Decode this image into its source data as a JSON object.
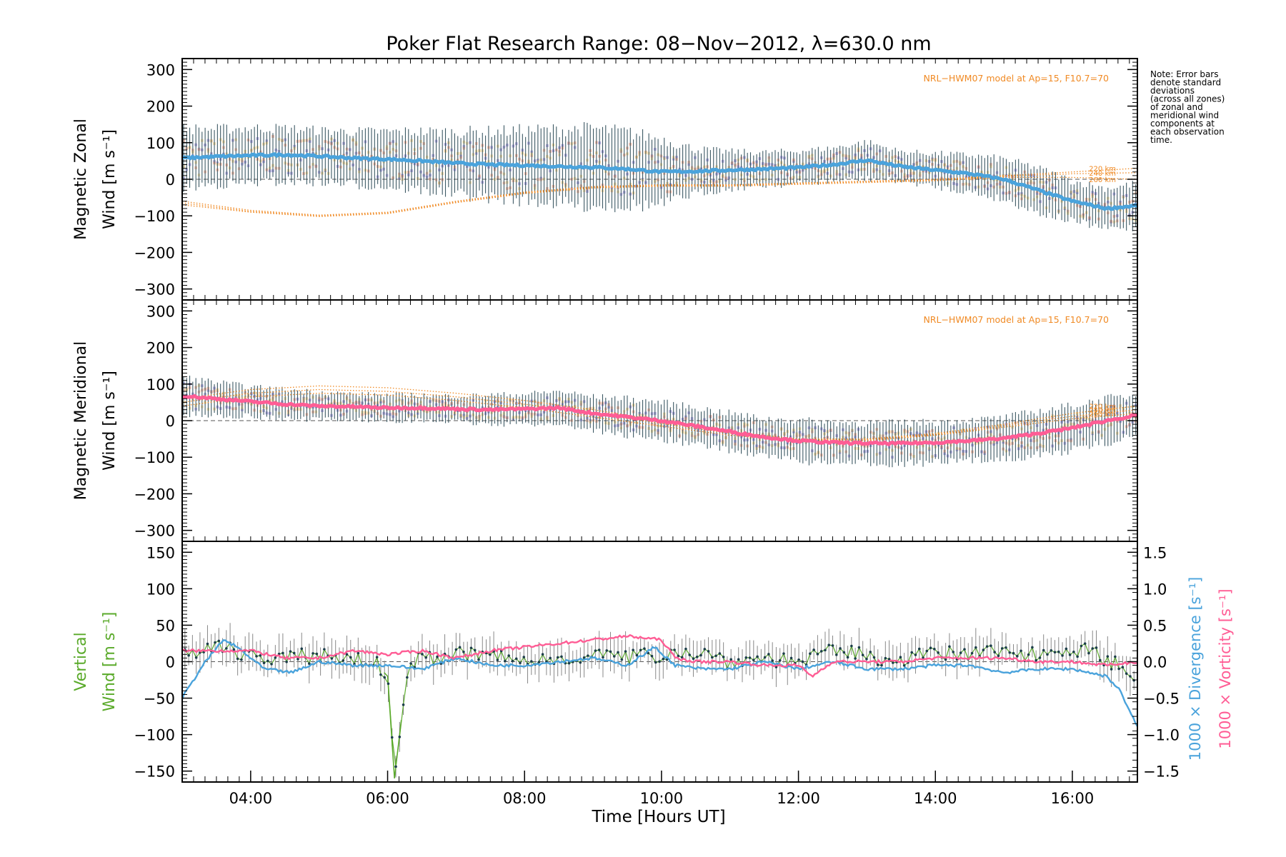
{
  "title": "Poker Flat Research Range: 08−Nov−2012, λ=630.0 nm",
  "note_lines": [
    "Note: Error bars",
    "denote standard",
    "deviations",
    "(across all zones)",
    "of zonal and",
    "meridional wind",
    "components at",
    "each observation",
    "time."
  ],
  "colors": {
    "zonal_mean": "#4aa3dc",
    "meridional_mean": "#ff5d95",
    "vertical": "#5aaa2a",
    "divergence": "#4aa3dc",
    "vorticity": "#ff5d95",
    "model": "#f08a24",
    "zone_purple": "#a8a0dc",
    "zone_peach": "#f8b8a0",
    "zone_yellow": "#f8dca0",
    "errorbar": "#1c3d4a",
    "vert_errorbar": "#888888"
  },
  "chart_data": [
    {
      "type": "line",
      "panel": "zonal",
      "ylabel_line1": "Magnetic Zonal",
      "ylabel_line2": "Wind [m s⁻¹]",
      "model_label": "NRL−HWM07 model at Ap=15, F10.7=70",
      "model_alt_labels": [
        "220 km",
        "240 km",
        "260 km"
      ],
      "xlim": [
        3.0,
        16.95
      ],
      "ylim": [
        -330,
        330
      ],
      "yticks": [
        -300,
        -200,
        -100,
        0,
        100,
        200,
        300
      ],
      "ytick_labels": [
        "−300",
        "−200",
        "−100",
        "0",
        "100",
        "200",
        "300"
      ],
      "series": [
        {
          "role": "mean",
          "x": [
            3.0,
            3.5,
            4.0,
            4.5,
            5.0,
            5.5,
            6.0,
            6.5,
            7.0,
            7.5,
            8.0,
            8.5,
            9.0,
            9.5,
            10.0,
            10.5,
            11.0,
            11.5,
            12.0,
            12.5,
            13.0,
            13.5,
            14.0,
            14.5,
            15.0,
            15.5,
            16.0,
            16.5,
            16.95
          ],
          "y": [
            58,
            62,
            65,
            67,
            63,
            58,
            55,
            50,
            44,
            40,
            38,
            35,
            33,
            28,
            20,
            22,
            25,
            28,
            32,
            40,
            52,
            35,
            25,
            15,
            0,
            -30,
            -60,
            -80,
            -72
          ],
          "sd": [
            80,
            75,
            75,
            72,
            70,
            72,
            75,
            80,
            85,
            90,
            95,
            100,
            105,
            100,
            90,
            60,
            50,
            45,
            45,
            45,
            50,
            40,
            45,
            50,
            55,
            60,
            55,
            55,
            60
          ]
        },
        {
          "role": "model",
          "name": "220 km",
          "x": [
            3.0,
            4.0,
            5.0,
            6.0,
            7.0,
            8.0,
            9.0,
            10.0,
            11.0,
            12.0,
            13.0,
            14.0,
            15.0,
            16.0,
            16.95
          ],
          "y": [
            -60,
            -85,
            -98,
            -90,
            -60,
            -35,
            -20,
            -15,
            -15,
            -10,
            -5,
            0,
            10,
            20,
            30
          ]
        },
        {
          "role": "model",
          "name": "240 km",
          "x": [
            3.0,
            4.0,
            5.0,
            6.0,
            7.0,
            8.0,
            9.0,
            10.0,
            11.0,
            12.0,
            13.0,
            14.0,
            15.0,
            16.0,
            16.95
          ],
          "y": [
            -65,
            -88,
            -100,
            -92,
            -62,
            -37,
            -22,
            -17,
            -17,
            -12,
            -7,
            -2,
            8,
            15,
            18
          ]
        },
        {
          "role": "model",
          "name": "260 km",
          "x": [
            3.0,
            4.0,
            5.0,
            6.0,
            7.0,
            8.0,
            9.0,
            10.0,
            11.0,
            12.0,
            13.0,
            14.0,
            15.0,
            16.0,
            16.95
          ],
          "y": [
            -70,
            -90,
            -102,
            -94,
            -64,
            -39,
            -24,
            -19,
            -19,
            -14,
            -9,
            -4,
            5,
            5,
            0
          ]
        }
      ]
    },
    {
      "type": "line",
      "panel": "meridional",
      "ylabel_line1": "Magnetic Meridional",
      "ylabel_line2": "Wind [m s⁻¹]",
      "model_label": "NRL−HWM07 model at Ap=15, F10.7=70",
      "model_alt_labels": [
        "220 km",
        "240 km",
        "260 km"
      ],
      "xlim": [
        3.0,
        16.95
      ],
      "ylim": [
        -330,
        330
      ],
      "yticks": [
        -300,
        -200,
        -100,
        0,
        100,
        200,
        300
      ],
      "ytick_labels": [
        "−300",
        "−200",
        "−100",
        "0",
        "100",
        "200",
        "300"
      ],
      "series": [
        {
          "role": "mean",
          "x": [
            3.0,
            3.5,
            4.0,
            4.5,
            5.0,
            5.5,
            6.0,
            6.5,
            7.0,
            7.5,
            8.0,
            8.5,
            9.0,
            9.5,
            10.0,
            10.5,
            11.0,
            11.5,
            12.0,
            12.5,
            13.0,
            13.5,
            14.0,
            14.5,
            15.0,
            15.5,
            16.0,
            16.5,
            16.95
          ],
          "y": [
            68,
            60,
            52,
            45,
            40,
            38,
            35,
            35,
            32,
            30,
            32,
            35,
            20,
            10,
            0,
            -15,
            -30,
            -45,
            -55,
            -60,
            -62,
            -62,
            -60,
            -55,
            -48,
            -35,
            -20,
            0,
            15
          ],
          "sd": [
            50,
            45,
            40,
            40,
            38,
            35,
            35,
            35,
            35,
            40,
            40,
            45,
            45,
            50,
            50,
            50,
            50,
            50,
            55,
            55,
            55,
            55,
            55,
            55,
            55,
            60,
            60,
            60,
            55
          ]
        },
        {
          "role": "model",
          "name": "220 km",
          "x": [
            3.0,
            4.0,
            5.0,
            6.0,
            7.0,
            8.0,
            9.0,
            10.0,
            11.0,
            12.0,
            13.0,
            14.0,
            15.0,
            16.0,
            16.95
          ],
          "y": [
            60,
            85,
            95,
            90,
            75,
            55,
            30,
            0,
            -30,
            -50,
            -50,
            -35,
            -10,
            20,
            40
          ]
        },
        {
          "role": "model",
          "name": "240 km",
          "x": [
            3.0,
            4.0,
            5.0,
            6.0,
            7.0,
            8.0,
            9.0,
            10.0,
            11.0,
            12.0,
            13.0,
            14.0,
            15.0,
            16.0,
            16.95
          ],
          "y": [
            50,
            75,
            85,
            80,
            65,
            45,
            20,
            -8,
            -35,
            -52,
            -52,
            -38,
            -14,
            12,
            30
          ]
        },
        {
          "role": "model",
          "name": "260 km",
          "x": [
            3.0,
            4.0,
            5.0,
            6.0,
            7.0,
            8.0,
            9.0,
            10.0,
            11.0,
            12.0,
            13.0,
            14.0,
            15.0,
            16.0,
            16.95
          ],
          "y": [
            40,
            65,
            75,
            70,
            55,
            35,
            10,
            -15,
            -40,
            -55,
            -55,
            -40,
            -18,
            5,
            20
          ]
        }
      ]
    },
    {
      "type": "line",
      "panel": "vertical",
      "ylabel_line1": "Vertical",
      "ylabel_line2": "Wind [m s⁻¹]",
      "right_label_div": "1000 × Divergence [s⁻¹]",
      "right_label_vort": "1000 × Vorticity [s⁻¹]",
      "xlabel": "Time [Hours UT]",
      "xlim": [
        3.0,
        16.95
      ],
      "xticks": [
        4,
        6,
        8,
        10,
        12,
        14,
        16
      ],
      "xtick_labels": [
        "04:00",
        "06:00",
        "08:00",
        "10:00",
        "12:00",
        "14:00",
        "16:00"
      ],
      "ylim": [
        -165,
        165
      ],
      "yticks": [
        -150,
        -100,
        -50,
        0,
        50,
        100,
        150
      ],
      "ytick_labels": [
        "−150",
        "−100",
        "−50",
        "0",
        "50",
        "100",
        "150"
      ],
      "y2lim": [
        -1.65,
        1.65
      ],
      "y2ticks": [
        -1.5,
        -1.0,
        -0.5,
        0.0,
        0.5,
        1.0,
        1.5
      ],
      "y2tick_labels": [
        "−1.5",
        "−1.0",
        "−0.5",
        "0.0",
        "0.5",
        "1.0",
        "1.5"
      ],
      "series": [
        {
          "role": "vertical_wind",
          "x": [
            3.0,
            3.3,
            3.6,
            4.0,
            4.3,
            4.6,
            5.0,
            5.4,
            5.8,
            6.0,
            6.05,
            6.1,
            6.3,
            6.7,
            7.0,
            7.3,
            7.7,
            8.0,
            8.5,
            9.0,
            9.5,
            10.0,
            10.3,
            10.7,
            11.0,
            11.5,
            12.0,
            12.3,
            12.7,
            13.0,
            13.5,
            14.0,
            14.5,
            15.0,
            15.5,
            16.0,
            16.5,
            16.9
          ],
          "y": [
            5,
            15,
            20,
            10,
            0,
            5,
            10,
            5,
            0,
            -20,
            -90,
            -160,
            0,
            5,
            10,
            10,
            5,
            0,
            5,
            10,
            5,
            10,
            15,
            10,
            0,
            5,
            0,
            10,
            15,
            5,
            5,
            10,
            10,
            15,
            10,
            20,
            5,
            -20
          ],
          "err": [
            20,
            20,
            20,
            20,
            20,
            20,
            20,
            20,
            20,
            20,
            20,
            20,
            20,
            20,
            20,
            20,
            20,
            20,
            20,
            20,
            20,
            20,
            20,
            20,
            20,
            20,
            20,
            20,
            20,
            20,
            20,
            20,
            20,
            20,
            20,
            20,
            20,
            20
          ]
        },
        {
          "role": "divergence",
          "axis": "right",
          "x": [
            3.0,
            3.3,
            3.6,
            3.8,
            4.2,
            4.6,
            5.0,
            5.5,
            6.0,
            6.5,
            7.0,
            7.5,
            8.0,
            8.5,
            9.0,
            9.5,
            9.9,
            10.2,
            10.6,
            11.0,
            11.5,
            12.0,
            12.5,
            13.0,
            13.5,
            14.0,
            14.5,
            15.0,
            15.5,
            16.0,
            16.5,
            16.7,
            16.95
          ],
          "y": [
            -0.5,
            -0.05,
            0.3,
            0.2,
            -0.1,
            -0.15,
            0.0,
            -0.05,
            -0.05,
            -0.1,
            0.05,
            -0.05,
            -0.05,
            0.0,
            0.05,
            -0.05,
            0.2,
            -0.05,
            -0.1,
            -0.1,
            0.0,
            -0.1,
            0.0,
            -0.1,
            -0.1,
            -0.05,
            -0.05,
            -0.15,
            -0.1,
            -0.1,
            -0.2,
            -0.4,
            -0.9
          ]
        },
        {
          "role": "vorticity",
          "axis": "right",
          "x": [
            3.0,
            3.5,
            4.0,
            4.5,
            5.0,
            5.5,
            6.0,
            6.5,
            7.0,
            7.5,
            8.0,
            8.5,
            9.0,
            9.5,
            10.0,
            10.2,
            10.5,
            11.0,
            11.5,
            12.0,
            12.2,
            12.5,
            13.0,
            13.5,
            14.0,
            14.5,
            15.0,
            15.5,
            16.0,
            16.5,
            16.95
          ],
          "y": [
            0.15,
            0.15,
            0.15,
            0.05,
            0.05,
            0.15,
            0.1,
            0.15,
            0.05,
            0.15,
            0.2,
            0.25,
            0.3,
            0.35,
            0.3,
            0.05,
            0.0,
            0.0,
            -0.05,
            -0.05,
            -0.2,
            0.0,
            0.0,
            0.0,
            0.05,
            0.05,
            0.05,
            0.0,
            0.0,
            -0.05,
            0.0
          ]
        }
      ]
    }
  ]
}
